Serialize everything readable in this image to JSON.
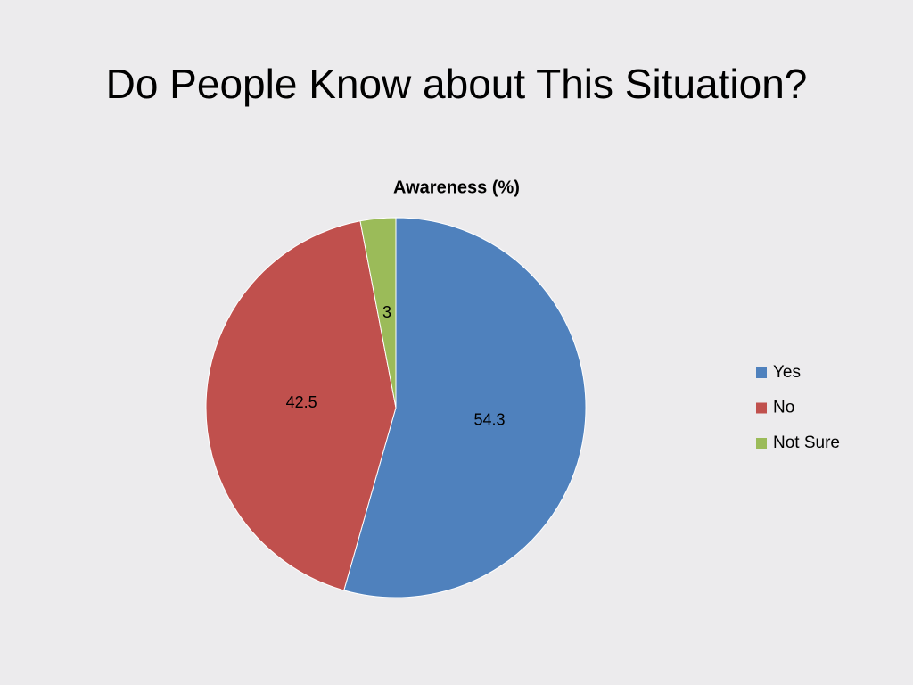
{
  "slide_title": "Do People Know about This Situation?",
  "chart_data": {
    "type": "pie",
    "title": "Awareness (%)",
    "categories": [
      "Yes",
      "No",
      "Not Sure"
    ],
    "values": [
      54.3,
      42.5,
      3
    ],
    "colors": [
      "#4f81bd",
      "#c0504d",
      "#9bbb59"
    ],
    "legend": "right"
  }
}
